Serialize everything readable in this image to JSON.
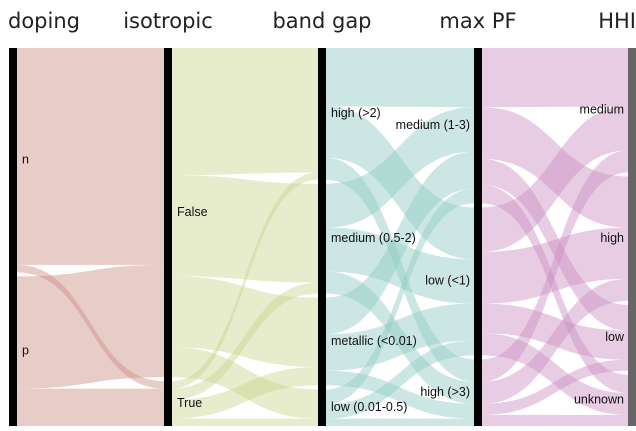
{
  "chart_data": {
    "type": "parcats",
    "dimensions": [
      {
        "name": "doping",
        "categories": [
          "n",
          "p"
        ]
      },
      {
        "name": "isotropic",
        "categories": [
          "False",
          "True"
        ]
      },
      {
        "name": "band gap",
        "categories": [
          "high (>2)",
          "medium (0.5-2)",
          "metallic (<0.01)",
          "low (0.01-0.5)"
        ]
      },
      {
        "name": "max PF",
        "categories": [
          "medium (1-3)",
          "low (<1)",
          "high (>3)"
        ]
      },
      {
        "name": "HHI",
        "categories": [
          "medium",
          "high",
          "low",
          "unknown"
        ]
      }
    ],
    "flows": [
      [
        [
          58,
          2
        ],
        [
          30,
          10
        ]
      ],
      [
        [
          34,
          27,
          19,
          8
        ],
        [
          2,
          3,
          5,
          2
        ]
      ],
      [
        [
          16,
          14,
          6
        ],
        [
          12,
          12,
          6
        ],
        [
          10,
          10,
          4
        ],
        [
          4,
          4,
          2
        ]
      ],
      [
        [
          16,
          14,
          7,
          5
        ],
        [
          12,
          14,
          8,
          6
        ],
        [
          6,
          6,
          3,
          3
        ]
      ]
    ],
    "flow_colors": [
      "#cc8f85",
      "#c7d58f",
      "#8fc9c0",
      "#cc8fc4"
    ]
  }
}
